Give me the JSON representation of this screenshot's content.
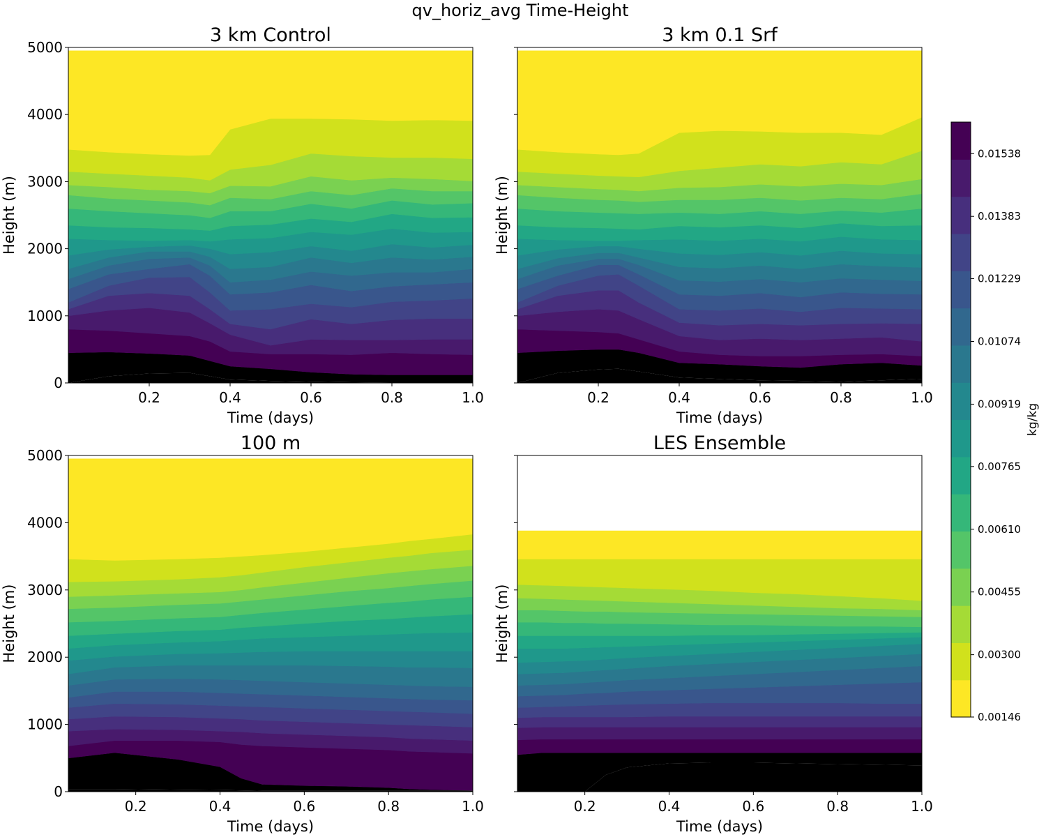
{
  "figure_title": "qv_horiz_avg Time-Height",
  "colorbar": {
    "label": "kg/kg",
    "range": [
      0.00146,
      0.01616
    ],
    "tick_values": [
      0.00146,
      0.003,
      0.00455,
      0.0061,
      0.00765,
      0.00919,
      0.01074,
      0.01229,
      0.01383,
      0.01538
    ],
    "tick_labels": [
      "0.00146",
      "0.00300",
      "0.00455",
      "0.00610",
      "0.00765",
      "0.00919",
      "0.01074",
      "0.01229",
      "0.01383",
      "0.01538"
    ],
    "band_colors": [
      "#fde725",
      "#d1e11c",
      "#a5db36",
      "#7ad151",
      "#54c568",
      "#35b779",
      "#22a785",
      "#1f988b",
      "#23888e",
      "#2a788e",
      "#31688e",
      "#39568c",
      "#414487",
      "#472f7d",
      "#481a6c",
      "#440154"
    ]
  },
  "chart_data": [
    {
      "type": "heatmap",
      "title": "3 km Control",
      "xlabel": "Time (days)",
      "ylabel": "Height (m)",
      "xlim": [
        0.0,
        1.0
      ],
      "ylim": [
        0,
        5000
      ],
      "data_ylim": [
        0,
        4950
      ],
      "xticks": [
        0.2,
        0.4,
        0.6,
        0.8,
        1.0
      ],
      "xtick_labels": [
        "0.2",
        "0.4",
        "0.6",
        "0.8",
        "1.0"
      ],
      "yticks": [
        0,
        1000,
        2000,
        3000,
        4000,
        5000
      ],
      "ytick_labels": [
        "0",
        "1000",
        "2000",
        "3000",
        "4000",
        "5000"
      ],
      "show_ytick_labels": true,
      "time_points": [
        0.0,
        0.1,
        0.2,
        0.3,
        0.35,
        0.4,
        0.5,
        0.6,
        0.7,
        0.8,
        0.9,
        1.0
      ],
      "contour_boundary_heights_m": [
        [
          0,
          100,
          140,
          150,
          100,
          50,
          30,
          20,
          10,
          5,
          5,
          5
        ],
        [
          450,
          460,
          440,
          410,
          330,
          250,
          210,
          160,
          130,
          120,
          120,
          120
        ],
        [
          800,
          780,
          740,
          700,
          620,
          470,
          430,
          430,
          420,
          450,
          430,
          420
        ],
        [
          1000,
          1080,
          1120,
          1050,
          890,
          720,
          560,
          650,
          640,
          640,
          650,
          650
        ],
        [
          1100,
          1300,
          1340,
          1300,
          1100,
          880,
          800,
          950,
          880,
          940,
          960,
          960
        ],
        [
          1200,
          1450,
          1570,
          1580,
          1350,
          1080,
          1100,
          1180,
          1130,
          1210,
          1230,
          1260
        ],
        [
          1400,
          1620,
          1700,
          1770,
          1600,
          1320,
          1350,
          1460,
          1370,
          1440,
          1470,
          1500
        ],
        [
          1550,
          1750,
          1850,
          1870,
          1750,
          1500,
          1540,
          1660,
          1600,
          1650,
          1650,
          1700
        ],
        [
          1700,
          1870,
          1960,
          1960,
          1880,
          1700,
          1730,
          1870,
          1790,
          1870,
          1840,
          1880
        ],
        [
          1900,
          1990,
          2030,
          2050,
          2000,
          1920,
          1950,
          2040,
          1970,
          2070,
          2020,
          2060
        ],
        [
          2150,
          2130,
          2120,
          2130,
          2110,
          2140,
          2160,
          2250,
          2210,
          2300,
          2240,
          2250
        ],
        [
          2350,
          2320,
          2310,
          2290,
          2270,
          2340,
          2360,
          2450,
          2400,
          2520,
          2460,
          2470
        ],
        [
          2600,
          2560,
          2530,
          2500,
          2460,
          2560,
          2560,
          2670,
          2600,
          2720,
          2660,
          2680
        ],
        [
          2800,
          2750,
          2720,
          2690,
          2650,
          2760,
          2740,
          2860,
          2800,
          2900,
          2860,
          2860
        ],
        [
          2950,
          2920,
          2880,
          2860,
          2830,
          2940,
          2930,
          3080,
          3020,
          3060,
          3040,
          3010
        ],
        [
          3150,
          3120,
          3090,
          3060,
          3020,
          3180,
          3250,
          3420,
          3380,
          3360,
          3360,
          3340
        ],
        [
          3480,
          3440,
          3410,
          3390,
          3400,
          3780,
          3940,
          3940,
          3930,
          3910,
          3920,
          3910
        ]
      ]
    },
    {
      "type": "heatmap",
      "title": "3 km 0.1 Srf",
      "xlabel": "Time (days)",
      "ylabel": "Height (m)",
      "xlim": [
        0.0,
        1.0
      ],
      "ylim": [
        0,
        5000
      ],
      "data_ylim": [
        0,
        4950
      ],
      "xticks": [
        0.2,
        0.4,
        0.6,
        0.8,
        1.0
      ],
      "xtick_labels": [
        "0.2",
        "0.4",
        "0.6",
        "0.8",
        "1.0"
      ],
      "yticks": [
        0,
        1000,
        2000,
        3000,
        4000,
        5000
      ],
      "ytick_labels": [
        "0",
        "1000",
        "2000",
        "3000",
        "4000",
        "5000"
      ],
      "show_ytick_labels": false,
      "time_points": [
        0.0,
        0.1,
        0.2,
        0.25,
        0.3,
        0.4,
        0.5,
        0.6,
        0.7,
        0.8,
        0.9,
        1.0
      ],
      "contour_boundary_heights_m": [
        [
          0,
          150,
          200,
          210,
          170,
          80,
          60,
          40,
          30,
          20,
          40,
          60
        ],
        [
          450,
          480,
          500,
          500,
          450,
          300,
          280,
          250,
          230,
          280,
          300,
          260
        ],
        [
          800,
          780,
          760,
          740,
          650,
          470,
          420,
          400,
          400,
          420,
          430,
          400
        ],
        [
          1000,
          1060,
          1100,
          1080,
          950,
          700,
          640,
          660,
          640,
          660,
          680,
          620
        ],
        [
          1100,
          1300,
          1380,
          1380,
          1200,
          900,
          860,
          880,
          860,
          880,
          890,
          880
        ],
        [
          1200,
          1450,
          1600,
          1620,
          1450,
          1100,
          1080,
          1110,
          1060,
          1120,
          1110,
          1100
        ],
        [
          1400,
          1600,
          1760,
          1760,
          1620,
          1320,
          1300,
          1340,
          1280,
          1350,
          1330,
          1320
        ],
        [
          1550,
          1750,
          1850,
          1850,
          1760,
          1530,
          1510,
          1550,
          1500,
          1560,
          1540,
          1520
        ],
        [
          1700,
          1860,
          1940,
          1940,
          1870,
          1730,
          1710,
          1750,
          1700,
          1770,
          1740,
          1720
        ],
        [
          1900,
          1990,
          2040,
          2040,
          2000,
          1930,
          1910,
          1950,
          1900,
          1970,
          1930,
          1920
        ],
        [
          2150,
          2130,
          2120,
          2120,
          2130,
          2140,
          2120,
          2150,
          2110,
          2180,
          2140,
          2130
        ],
        [
          2350,
          2320,
          2310,
          2300,
          2290,
          2340,
          2320,
          2350,
          2310,
          2380,
          2340,
          2350
        ],
        [
          2600,
          2560,
          2540,
          2530,
          2520,
          2540,
          2520,
          2560,
          2520,
          2570,
          2540,
          2600
        ],
        [
          2800,
          2760,
          2730,
          2720,
          2700,
          2730,
          2730,
          2760,
          2720,
          2760,
          2740,
          2820
        ],
        [
          2950,
          2920,
          2890,
          2880,
          2860,
          2910,
          2920,
          2960,
          2930,
          2970,
          2950,
          3040
        ],
        [
          3150,
          3120,
          3090,
          3080,
          3070,
          3160,
          3210,
          3260,
          3230,
          3290,
          3260,
          3460
        ],
        [
          3480,
          3440,
          3410,
          3400,
          3420,
          3730,
          3760,
          3750,
          3730,
          3730,
          3700,
          3960
        ]
      ]
    },
    {
      "type": "heatmap",
      "title": "100 m",
      "xlabel": "Time (days)",
      "ylabel": "Height (m)",
      "xlim": [
        0.04,
        1.0
      ],
      "ylim": [
        0,
        5000
      ],
      "data_ylim": [
        0,
        4950
      ],
      "xticks": [
        0.2,
        0.4,
        0.6,
        0.8,
        1.0
      ],
      "xtick_labels": [
        "0.2",
        "0.4",
        "0.6",
        "0.8",
        "1.0"
      ],
      "yticks": [
        0,
        1000,
        2000,
        3000,
        4000,
        5000
      ],
      "ytick_labels": [
        "0",
        "1000",
        "2000",
        "3000",
        "4000",
        "5000"
      ],
      "show_ytick_labels": true,
      "time_points": [
        0.04,
        0.15,
        0.3,
        0.4,
        0.45,
        0.5,
        0.6,
        0.7,
        0.8,
        0.85,
        0.9,
        1.0
      ],
      "contour_boundary_heights_m": [
        [
          40,
          40,
          30,
          25,
          20,
          15,
          15,
          15,
          15,
          15,
          15,
          15
        ],
        [
          500,
          580,
          480,
          370,
          200,
          110,
          90,
          80,
          60,
          40,
          30,
          20
        ],
        [
          680,
          760,
          760,
          740,
          700,
          680,
          660,
          640,
          620,
          600,
          590,
          570
        ],
        [
          900,
          930,
          920,
          900,
          890,
          870,
          850,
          830,
          810,
          790,
          780,
          760
        ],
        [
          1080,
          1120,
          1110,
          1090,
          1080,
          1060,
          1040,
          1020,
          1000,
          990,
          980,
          960
        ],
        [
          1250,
          1310,
          1300,
          1280,
          1270,
          1260,
          1240,
          1220,
          1200,
          1190,
          1180,
          1160
        ],
        [
          1400,
          1490,
          1490,
          1470,
          1460,
          1450,
          1430,
          1410,
          1390,
          1380,
          1370,
          1360
        ],
        [
          1580,
          1670,
          1680,
          1670,
          1660,
          1650,
          1630,
          1610,
          1590,
          1580,
          1570,
          1560
        ],
        [
          1750,
          1850,
          1880,
          1880,
          1880,
          1880,
          1880,
          1870,
          1860,
          1850,
          1850,
          1840
        ],
        [
          1950,
          2010,
          2050,
          2060,
          2070,
          2080,
          2090,
          2090,
          2090,
          2090,
          2090,
          2090
        ],
        [
          2130,
          2180,
          2220,
          2240,
          2260,
          2280,
          2300,
          2320,
          2340,
          2350,
          2360,
          2370
        ],
        [
          2320,
          2350,
          2390,
          2410,
          2440,
          2460,
          2500,
          2540,
          2570,
          2590,
          2610,
          2640
        ],
        [
          2520,
          2540,
          2580,
          2600,
          2630,
          2660,
          2710,
          2760,
          2810,
          2830,
          2860,
          2900
        ],
        [
          2720,
          2740,
          2780,
          2800,
          2830,
          2860,
          2920,
          2980,
          3030,
          3060,
          3090,
          3140
        ],
        [
          2900,
          2920,
          2950,
          2970,
          3000,
          3040,
          3110,
          3180,
          3250,
          3280,
          3310,
          3360
        ],
        [
          3120,
          3130,
          3160,
          3190,
          3220,
          3260,
          3340,
          3410,
          3480,
          3510,
          3550,
          3600
        ],
        [
          3460,
          3440,
          3460,
          3480,
          3500,
          3520,
          3570,
          3630,
          3690,
          3730,
          3760,
          3830
        ]
      ]
    },
    {
      "type": "heatmap",
      "title": "LES Ensemble",
      "xlabel": "Time (days)",
      "ylabel": "Height (m)",
      "xlim": [
        0.04,
        1.0
      ],
      "ylim": [
        0,
        5000
      ],
      "data_ylim": [
        0,
        3880
      ],
      "xticks": [
        0.2,
        0.4,
        0.6,
        0.8,
        1.0
      ],
      "xtick_labels": [
        "0.2",
        "0.4",
        "0.6",
        "0.8",
        "1.0"
      ],
      "yticks": [
        0,
        1000,
        2000,
        3000,
        4000,
        5000
      ],
      "ytick_labels": [
        "0",
        "1000",
        "2000",
        "3000",
        "4000",
        "5000"
      ],
      "show_ytick_labels": false,
      "time_points": [
        0.04,
        0.1,
        0.15,
        0.2,
        0.25,
        0.3,
        0.4,
        0.5,
        0.6,
        0.7,
        0.8,
        0.9,
        1.0
      ],
      "contour_boundary_heights_m": [
        [
          0,
          0,
          0,
          0,
          250,
          360,
          420,
          430,
          430,
          420,
          410,
          400,
          390
        ],
        [
          550,
          580,
          580,
          580,
          580,
          580,
          580,
          580,
          580,
          580,
          580,
          580,
          580
        ],
        [
          770,
          780,
          780,
          780,
          780,
          780,
          780,
          780,
          780,
          780,
          780,
          780,
          780
        ],
        [
          950,
          960,
          960,
          960,
          960,
          960,
          960,
          960,
          960,
          960,
          960,
          960,
          960
        ],
        [
          1100,
          1110,
          1110,
          1110,
          1110,
          1110,
          1120,
          1120,
          1120,
          1120,
          1120,
          1120,
          1120
        ],
        [
          1250,
          1260,
          1270,
          1280,
          1290,
          1300,
          1310,
          1320,
          1320,
          1320,
          1320,
          1310,
          1310
        ],
        [
          1420,
          1430,
          1440,
          1460,
          1470,
          1490,
          1510,
          1530,
          1550,
          1570,
          1590,
          1610,
          1630
        ],
        [
          1580,
          1590,
          1600,
          1620,
          1640,
          1660,
          1690,
          1720,
          1750,
          1780,
          1810,
          1840,
          1870
        ],
        [
          1750,
          1760,
          1770,
          1790,
          1810,
          1830,
          1870,
          1900,
          1930,
          1960,
          1990,
          2020,
          2050
        ],
        [
          1920,
          1930,
          1940,
          1950,
          1970,
          1990,
          2020,
          2050,
          2080,
          2110,
          2140,
          2170,
          2200
        ],
        [
          2130,
          2130,
          2130,
          2140,
          2150,
          2160,
          2180,
          2200,
          2220,
          2240,
          2260,
          2280,
          2300
        ],
        [
          2320,
          2320,
          2320,
          2320,
          2320,
          2320,
          2320,
          2330,
          2330,
          2340,
          2350,
          2360,
          2370
        ],
        [
          2520,
          2520,
          2510,
          2510,
          2500,
          2500,
          2490,
          2480,
          2480,
          2470,
          2460,
          2460,
          2450
        ],
        [
          2700,
          2700,
          2690,
          2680,
          2680,
          2670,
          2660,
          2650,
          2640,
          2630,
          2620,
          2610,
          2600
        ],
        [
          2880,
          2870,
          2860,
          2850,
          2840,
          2830,
          2810,
          2790,
          2770,
          2750,
          2730,
          2720,
          2700
        ],
        [
          3080,
          3070,
          3060,
          3050,
          3040,
          3030,
          3010,
          2990,
          2960,
          2940,
          2910,
          2880,
          2840
        ],
        [
          3460,
          3460,
          3460,
          3460,
          3460,
          3460,
          3460,
          3460,
          3460,
          3460,
          3460,
          3460,
          3460
        ]
      ]
    }
  ]
}
